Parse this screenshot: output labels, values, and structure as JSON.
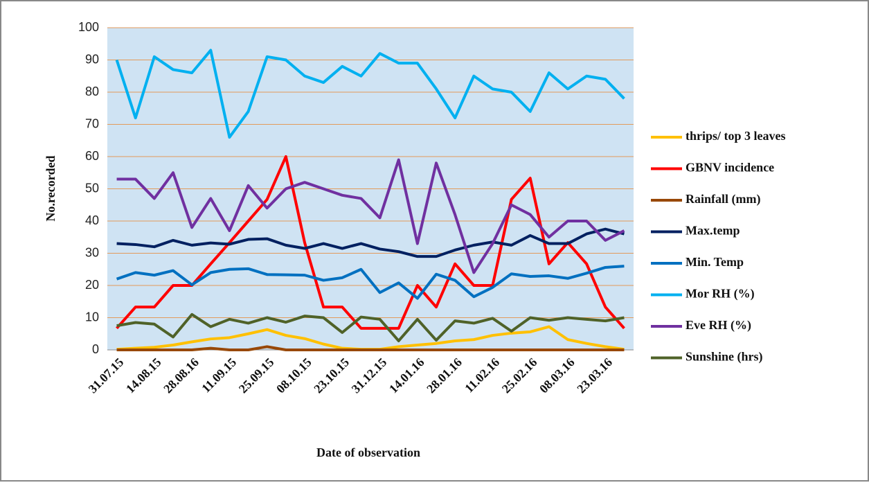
{
  "chart_data": {
    "type": "line",
    "y_label": "No.recorded",
    "x_label": "Date of observation",
    "categories": [
      "31.07.15",
      null,
      "14.08.15",
      null,
      "28.08.16",
      null,
      "11.09.15",
      null,
      "25.09.15",
      null,
      "08.10.15",
      null,
      "23.10.15",
      null,
      "31.12.15",
      null,
      "14.01.16",
      null,
      "28.01.16",
      null,
      "11.02.16",
      null,
      "25.02.16",
      null,
      "08.03.16",
      null,
      "23.03.16",
      null
    ],
    "ylim": [
      0,
      100
    ],
    "yticks": [
      0,
      10,
      20,
      30,
      40,
      50,
      60,
      70,
      80,
      90,
      100
    ],
    "grid": true,
    "series": [
      {
        "name": "thrips/ top 3 leaves",
        "color": "#ffc000",
        "values": [
          0.2,
          0.5,
          0.8,
          1.5,
          2.5,
          3.4,
          3.8,
          5,
          6.3,
          4.5,
          3.5,
          1.8,
          0.5,
          0.2,
          0.2,
          1,
          1.5,
          2,
          2.8,
          3.2,
          4.5,
          5.2,
          5.6,
          7.2,
          3.2,
          2,
          1,
          0.2
        ]
      },
      {
        "name": "GBNV incidence",
        "color": "#ff0000",
        "values": [
          6.7,
          13.3,
          13.3,
          20,
          20,
          26.7,
          33.3,
          40,
          46.7,
          60,
          33.3,
          13.3,
          13.3,
          6.7,
          6.7,
          6.7,
          20,
          13.3,
          26.7,
          20,
          20,
          46.7,
          53.3,
          26.7,
          33.3,
          26.7,
          13.3,
          6.7
        ]
      },
      {
        "name": "Rainfall (mm)",
        "color": "#984807",
        "values": [
          0,
          0,
          0,
          0,
          0,
          0.5,
          0,
          0,
          1,
          0,
          0,
          0,
          0,
          0,
          0,
          0,
          0,
          0,
          0,
          0,
          0,
          0,
          0,
          0,
          0,
          0,
          0,
          0
        ]
      },
      {
        "name": "Max.temp",
        "color": "#002060",
        "values": [
          33,
          32.7,
          32,
          34,
          32.5,
          33.2,
          32.8,
          34.3,
          34.5,
          32.5,
          31.5,
          33,
          31.5,
          33,
          31.3,
          30.5,
          29,
          29,
          31,
          32.5,
          33.5,
          32.5,
          35.5,
          33,
          33,
          36,
          37.5,
          36
        ]
      },
      {
        "name": "Min. Temp",
        "color": "#0070c0",
        "values": [
          22,
          24,
          23.2,
          24.6,
          20.2,
          24,
          25,
          25.2,
          23.4,
          23.3,
          23.2,
          21.6,
          22.4,
          25,
          17.8,
          20.8,
          16,
          23.5,
          21.6,
          16.5,
          19.4,
          23.6,
          22.8,
          23,
          22.2,
          23.8,
          25.6,
          26
        ]
      },
      {
        "name": "Mor RH (%)",
        "color": "#00b0f0",
        "values": [
          90,
          72,
          91,
          87,
          86,
          93,
          66,
          74,
          91,
          90,
          85,
          83,
          88,
          85,
          92,
          89,
          89,
          81,
          72,
          85,
          81,
          80,
          74,
          86,
          81,
          85,
          84,
          78
        ]
      },
      {
        "name": "Eve RH (%)",
        "color": "#7030a0",
        "values": [
          53,
          53,
          47,
          55,
          38,
          47,
          37,
          51,
          44,
          50,
          52,
          50,
          48,
          47,
          41,
          59,
          33,
          58,
          42,
          24,
          33,
          45,
          42,
          35,
          40,
          40,
          34,
          37
        ]
      },
      {
        "name": "Sunshine (hrs)",
        "color": "#4f6228",
        "values": [
          7.5,
          8.5,
          8,
          4,
          11,
          7.2,
          9.5,
          8.3,
          10,
          8.6,
          10.5,
          10,
          5.4,
          10.2,
          9.5,
          2.8,
          9.5,
          3,
          9,
          8.3,
          9.8,
          5.8,
          10,
          9.2,
          10,
          9.5,
          9,
          10
        ]
      }
    ]
  }
}
